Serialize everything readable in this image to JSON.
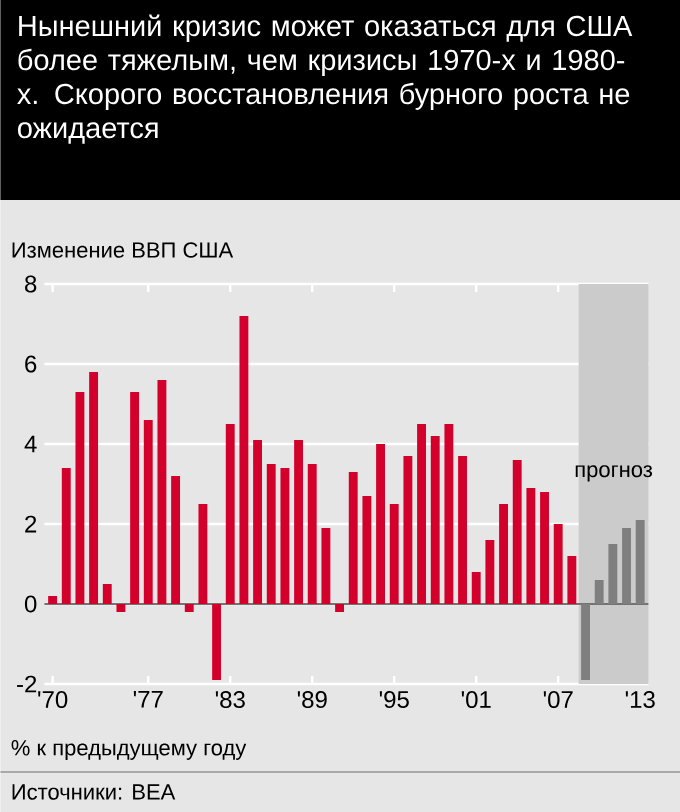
{
  "chart_data": {
    "type": "bar",
    "title": "Нынешний кризис может оказаться для  США более тяжелым, чем кризисы 1970-х и 1980-х. Скорого восстановления бурного роста не ожидается",
    "ylabel": "Изменение ВВП США",
    "xlabel": "% к предыдущему году",
    "annotations": [
      "Источники: BEA"
    ],
    "x": [
      1970,
      1971,
      1972,
      1973,
      1974,
      1975,
      1976,
      1977,
      1978,
      1979,
      1980,
      1981,
      1982,
      1983,
      1984,
      1985,
      1986,
      1987,
      1988,
      1989,
      1990,
      1991,
      1992,
      1993,
      1994,
      1995,
      1996,
      1997,
      1998,
      1999,
      2000,
      2001,
      2002,
      2003,
      2004,
      2005,
      2006,
      2007,
      2008,
      2009,
      2010,
      2011,
      2012,
      2013
    ],
    "values": [
      0.2,
      3.4,
      5.3,
      5.8,
      0.5,
      -0.2,
      5.3,
      4.6,
      5.6,
      3.2,
      -0.2,
      2.5,
      -1.9,
      4.5,
      7.2,
      4.1,
      3.5,
      3.4,
      4.1,
      3.5,
      1.9,
      -0.2,
      3.3,
      2.7,
      4.0,
      2.5,
      3.7,
      4.5,
      4.2,
      4.5,
      3.7,
      0.8,
      1.6,
      2.5,
      3.6,
      2.9,
      2.8,
      2.0,
      1.2,
      -1.9,
      0.6,
      1.5,
      1.9,
      2.1
    ],
    "colors": [
      "#d2002b",
      "#d2002b",
      "#d2002b",
      "#d2002b",
      "#d2002b",
      "#d2002b",
      "#d2002b",
      "#d2002b",
      "#d2002b",
      "#d2002b",
      "#d2002b",
      "#d2002b",
      "#d2002b",
      "#d2002b",
      "#d2002b",
      "#d2002b",
      "#d2002b",
      "#d2002b",
      "#d2002b",
      "#d2002b",
      "#d2002b",
      "#d2002b",
      "#d2002b",
      "#d2002b",
      "#d2002b",
      "#d2002b",
      "#d2002b",
      "#d2002b",
      "#d2002b",
      "#d2002b",
      "#d2002b",
      "#d2002b",
      "#d2002b",
      "#d2002b",
      "#d2002b",
      "#d2002b",
      "#d2002b",
      "#d2002b",
      "#d2002b",
      "#7f7f7f",
      "#7f7f7f",
      "#7f7f7f",
      "#7f7f7f",
      "#7f7f7f"
    ],
    "xlim": [
      1969.4,
      2013.6
    ],
    "xticks": [
      {
        "value": 1970,
        "label": "'70"
      },
      {
        "value": 1977,
        "label": "'77"
      },
      {
        "value": 1983,
        "label": "'83"
      },
      {
        "value": 1989,
        "label": "'89"
      },
      {
        "value": 1995,
        "label": "'95"
      },
      {
        "value": 2001,
        "label": "'01"
      },
      {
        "value": 2007,
        "label": "'07"
      },
      {
        "value": 2013,
        "label": "'13"
      }
    ],
    "ylim": [
      -2,
      8
    ],
    "yticks": [
      -2,
      0,
      2,
      4,
      6,
      8
    ],
    "grid": "y",
    "bands": [
      {
        "axis": "x",
        "from": 2008.5,
        "to": 2013.6,
        "label": "прогноз",
        "color": "#cbcbcb"
      }
    ]
  }
}
